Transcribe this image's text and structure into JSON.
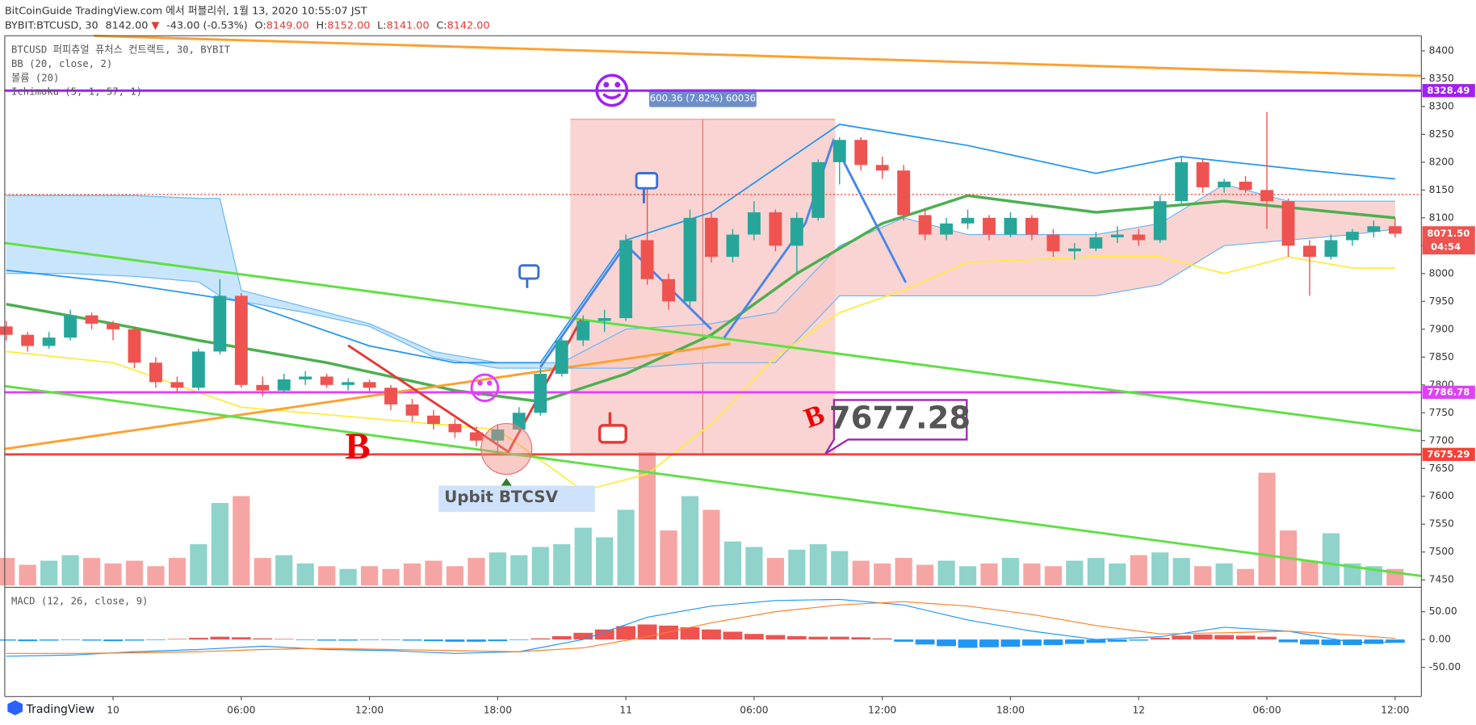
{
  "header": {
    "publish": "BitCoinGuide TradingView.com 에서 퍼블리쉬, 1월 13, 2020 10:55:07 JST",
    "symbol": "BYBIT:BTCUSD, 30",
    "price": {
      "value": 8142,
      "label": "8142.00"
    },
    "arrow": "▼",
    "change": "-43.00 (-0.53%)",
    "ohlc": [
      {
        "name": "O:",
        "value": 8149,
        "label": "8149.00"
      },
      {
        "name": "H:",
        "value": 8152,
        "label": "8152.00"
      },
      {
        "name": "L:",
        "value": 8141,
        "label": "8141.00"
      },
      {
        "name": "C:",
        "value": 8142,
        "label": "8142.00"
      }
    ]
  },
  "annotations": {
    "upbit": "Upbit BTCSV",
    "b1": "B",
    "b2": "B",
    "callout": "7677.28"
  },
  "footer": {
    "logo": "TradingView"
  },
  "chart_data": {
    "type": "candlestick",
    "legend": [
      "BTCUSD 퍼피츄얼 퓨처스 컨트랙트, 30, BYBIT",
      "BB (20, close, 2)",
      "볼륨 (20)",
      "Ichimoku (5, 1, 57, 1)"
    ],
    "up_color": "#26a69a",
    "down_color": "#ef5350",
    "xlim": [
      -5.07,
      61.23
    ],
    "ylim": [
      7440,
      8427
    ],
    "xticks": [
      {
        "value": 0,
        "label": "10"
      },
      {
        "value": 6,
        "label": "06:00"
      },
      {
        "value": 12,
        "label": "12:00"
      },
      {
        "value": 18,
        "label": "18:00"
      },
      {
        "value": 24,
        "label": "11"
      },
      {
        "value": 30,
        "label": "06:00"
      },
      {
        "value": 36,
        "label": "12:00"
      },
      {
        "value": 42,
        "label": "18:00"
      },
      {
        "value": 48,
        "label": "12"
      },
      {
        "value": 54,
        "label": "06:00"
      },
      {
        "value": 60,
        "label": "12:00"
      }
    ],
    "yticks": [
      7450,
      7500,
      7550,
      7600,
      7650,
      7700,
      7750,
      7800,
      7850,
      7900,
      7950,
      8000,
      8050,
      8100,
      8150,
      8200,
      8250,
      8300,
      8350,
      8400
    ],
    "x": [
      -5,
      -4,
      -3,
      -2,
      -1,
      0,
      1,
      2,
      3,
      4,
      5,
      6,
      7,
      8,
      9,
      10,
      11,
      12,
      13,
      14,
      15,
      16,
      17,
      18,
      19,
      20,
      21,
      22,
      23,
      24,
      25,
      26,
      27,
      28,
      29,
      30,
      31,
      32,
      33,
      34,
      35,
      36,
      37,
      38,
      39,
      40,
      41,
      42,
      43,
      44,
      45,
      46,
      47,
      48,
      49,
      50,
      51,
      52,
      53,
      54,
      55,
      56,
      57,
      58,
      59,
      60
    ],
    "candles": [
      [
        7905,
        7915,
        7880,
        7890
      ],
      [
        7890,
        7895,
        7860,
        7870
      ],
      [
        7870,
        7895,
        7865,
        7885
      ],
      [
        7885,
        7935,
        7880,
        7925
      ],
      [
        7925,
        7930,
        7900,
        7910
      ],
      [
        7910,
        7915,
        7880,
        7900
      ],
      [
        7900,
        7905,
        7830,
        7840
      ],
      [
        7840,
        7850,
        7795,
        7805
      ],
      [
        7805,
        7815,
        7785,
        7795
      ],
      [
        7795,
        7865,
        7790,
        7860
      ],
      [
        7860,
        7990,
        7855,
        7960
      ],
      [
        7960,
        7965,
        7795,
        7800
      ],
      [
        7800,
        7815,
        7780,
        7790
      ],
      [
        7790,
        7820,
        7785,
        7810
      ],
      [
        7810,
        7825,
        7800,
        7815
      ],
      [
        7815,
        7820,
        7795,
        7800
      ],
      [
        7800,
        7812,
        7790,
        7805
      ],
      [
        7805,
        7810,
        7785,
        7795
      ],
      [
        7795,
        7800,
        7755,
        7765
      ],
      [
        7765,
        7775,
        7735,
        7745
      ],
      [
        7745,
        7755,
        7720,
        7730
      ],
      [
        7730,
        7740,
        7705,
        7715
      ],
      [
        7715,
        7725,
        7690,
        7700
      ],
      [
        7700,
        7730,
        7677,
        7720
      ],
      [
        7720,
        7760,
        7715,
        7750
      ],
      [
        7750,
        7830,
        7745,
        7820
      ],
      [
        7820,
        7885,
        7815,
        7880
      ],
      [
        7880,
        7925,
        7870,
        7915
      ],
      [
        7915,
        7935,
        7895,
        7920
      ],
      [
        7920,
        8070,
        7915,
        8060
      ],
      [
        8060,
        8160,
        7980,
        7990
      ],
      [
        7990,
        8000,
        7935,
        7950
      ],
      [
        7950,
        8115,
        7940,
        8100
      ],
      [
        8100,
        8110,
        8020,
        8030
      ],
      [
        8030,
        8080,
        8020,
        8070
      ],
      [
        8070,
        8130,
        8060,
        8110
      ],
      [
        8110,
        8115,
        8040,
        8050
      ],
      [
        8050,
        8110,
        8000,
        8100
      ],
      [
        8100,
        8205,
        8095,
        8200
      ],
      [
        8200,
        8245,
        8160,
        8240
      ],
      [
        8240,
        8245,
        8185,
        8195
      ],
      [
        8195,
        8210,
        8170,
        8185
      ],
      [
        8185,
        8195,
        8095,
        8105
      ],
      [
        8105,
        8115,
        8060,
        8070
      ],
      [
        8070,
        8100,
        8060,
        8090
      ],
      [
        8090,
        8115,
        8080,
        8100
      ],
      [
        8100,
        8105,
        8060,
        8070
      ],
      [
        8070,
        8110,
        8065,
        8100
      ],
      [
        8100,
        8105,
        8060,
        8070
      ],
      [
        8070,
        8080,
        8030,
        8040
      ],
      [
        8040,
        8055,
        8025,
        8045
      ],
      [
        8045,
        8075,
        8040,
        8065
      ],
      [
        8065,
        8085,
        8055,
        8070
      ],
      [
        8070,
        8080,
        8050,
        8060
      ],
      [
        8060,
        8140,
        8055,
        8130
      ],
      [
        8130,
        8210,
        8125,
        8200
      ],
      [
        8200,
        8205,
        8145,
        8155
      ],
      [
        8155,
        8170,
        8145,
        8165
      ],
      [
        8165,
        8175,
        8145,
        8150
      ],
      [
        8150,
        8290,
        8080,
        8130
      ],
      [
        8130,
        8135,
        8030,
        8050
      ],
      [
        8050,
        8060,
        7960,
        8030
      ],
      [
        8030,
        8070,
        8025,
        8060
      ],
      [
        8060,
        8080,
        8050,
        8075
      ],
      [
        8075,
        8095,
        8065,
        8085
      ],
      [
        8085,
        8100,
        8065,
        8071.5
      ]
    ],
    "volume": {
      "ylim": [
        0,
        400
      ],
      "up_color": "#8fd3cb",
      "down_color": "#f5a5a3",
      "values": [
        20,
        15,
        18,
        22,
        20,
        16,
        18,
        14,
        20,
        30,
        60,
        65,
        20,
        22,
        16,
        14,
        12,
        14,
        12,
        16,
        18,
        14,
        20,
        24,
        22,
        28,
        30,
        42,
        35,
        55,
        97,
        40,
        65,
        55,
        32,
        28,
        20,
        26,
        30,
        25,
        18,
        16,
        20,
        15,
        18,
        14,
        16,
        20,
        16,
        14,
        18,
        20,
        16,
        22,
        24,
        20,
        14,
        16,
        12,
        82,
        40,
        18,
        38,
        16,
        14,
        12
      ]
    },
    "cloud": [
      {
        "color": "#bbdefb",
        "edge": "#64b5f6",
        "x": [
          -5,
          -2,
          1,
          4,
          5,
          6,
          9,
          12,
          15,
          18,
          21
        ],
        "upper": [
          8140,
          8140,
          8140,
          8135,
          8135,
          7970,
          7940,
          7910,
          7860,
          7840,
          7840
        ],
        "lower": [
          8000,
          8000,
          7995,
          7985,
          7960,
          7950,
          7930,
          7905,
          7850,
          7830,
          7830
        ]
      },
      {
        "color": "#f9c9c7",
        "edge": "#64b5f6",
        "x": [
          21,
          24,
          28,
          31,
          34,
          37,
          40,
          43,
          46,
          49,
          52,
          55,
          58,
          60
        ],
        "upper": [
          7840,
          7900,
          7910,
          7930,
          8050,
          8100,
          8070,
          8070,
          8070,
          8090,
          8160,
          8130,
          8130,
          8130
        ],
        "lower": [
          7830,
          7830,
          7840,
          7840,
          7960,
          7960,
          7960,
          7960,
          7960,
          7980,
          8050,
          8060,
          8070,
          8080
        ]
      }
    ],
    "lines": [
      {
        "color": "#2196f3",
        "x": [
          -5,
          0,
          6,
          12,
          16,
          20,
          24,
          28,
          34,
          40,
          46,
          50,
          56,
          60
        ],
        "values": [
          8006,
          7985,
          7950,
          7870,
          7840,
          7840,
          8060,
          8110,
          8268,
          8230,
          8180,
          8210,
          8185,
          8170
        ]
      },
      {
        "color": "#4caf50",
        "width": 3,
        "x": [
          -5,
          0,
          4,
          10,
          16,
          20,
          24,
          28,
          32,
          36,
          40,
          46,
          52,
          56,
          60
        ],
        "values": [
          7945,
          7910,
          7880,
          7840,
          7790,
          7770,
          7820,
          7890,
          8000,
          8090,
          8140,
          8110,
          8130,
          8115,
          8100
        ]
      },
      {
        "color": "#ffeb3b",
        "x": [
          -5,
          0,
          6,
          12,
          18,
          22,
          25,
          28,
          31,
          34,
          37,
          40,
          46,
          49,
          52,
          55,
          58,
          60
        ],
        "values": [
          7860,
          7840,
          7760,
          7740,
          7720,
          7610,
          7640,
          7730,
          7850,
          7930,
          7970,
          8020,
          8030,
          8030,
          8000,
          8030,
          8010,
          8010
        ]
      }
    ],
    "measure": {
      "x": [
        21.4,
        33.8
      ],
      "y": [
        7677,
        8277
      ],
      "label": "600.36 (7.82%) 60036",
      "color": "#f8c5c3"
    },
    "levels": [
      {
        "value": 8328.49,
        "color": "#a020f0"
      },
      {
        "value": 7786.78,
        "color": "#e040fb"
      },
      {
        "value": 7675.29,
        "color": "#f44336"
      },
      {
        "value": 8142,
        "color": "#f44336",
        "dotted": true
      }
    ],
    "current": {
      "value": 8071.5,
      "label": "8071.50",
      "countdown": "04:54",
      "color": "#ef5350"
    },
    "drawings": [
      {
        "color": "#ff9f2e",
        "x": [
          -0.9,
          61.23
        ],
        "y": [
          8427,
          8355
        ]
      },
      {
        "color": "#ff9f2e",
        "x": [
          -5.07,
          28.9
        ],
        "y": [
          7685,
          7874
        ]
      },
      {
        "color": "#5ee043",
        "x": [
          -5.07,
          61.23
        ],
        "y": [
          8055,
          7717
        ]
      },
      {
        "color": "#5ee043",
        "x": [
          -5.07,
          61.23
        ],
        "y": [
          7798,
          7457
        ]
      },
      {
        "color": "#4a86e8",
        "x": [
          20,
          24,
          28
        ],
        "y": [
          7832,
          8052,
          7900
        ]
      },
      {
        "color": "#4a86e8",
        "x": [
          28.6,
          32.4,
          33.7,
          37.1
        ],
        "y": [
          7885,
          8090,
          8238,
          7984
        ]
      },
      {
        "color": "#e53935",
        "x": [
          11,
          18.5,
          21.9
        ],
        "y": [
          7871,
          7680,
          7917
        ]
      }
    ],
    "macd": {
      "title": "MACD (12, 26, close, 9)",
      "ylim": [
        -99,
        87
      ],
      "yticks": [
        {
          "value": 50,
          "label": "50.00"
        },
        {
          "value": 0,
          "label": "0.00"
        },
        {
          "value": -50,
          "label": "-50.00"
        }
      ],
      "hist": [
        -2,
        -3,
        -2,
        -1,
        -2,
        -3,
        -2,
        -1,
        1,
        3,
        5,
        4,
        2,
        1,
        -1,
        -2,
        -2,
        -1,
        -1,
        -2,
        -3,
        -4,
        -4,
        -3,
        -1,
        2,
        6,
        12,
        18,
        24,
        27,
        25,
        22,
        18,
        14,
        10,
        8,
        6,
        5,
        5,
        4,
        2,
        -4,
        -9,
        -12,
        -15,
        -14,
        -13,
        -11,
        -10,
        -8,
        -6,
        -4,
        -2,
        3,
        7,
        9,
        8,
        7,
        5,
        -5,
        -9,
        -10,
        -10,
        -8,
        -6
      ],
      "pos_color": "#ef5350",
      "neg_color": "#2196f3",
      "lines": [
        {
          "color": "#2196f3",
          "x": [
            -5,
            -2,
            1,
            4,
            7,
            10,
            13,
            16,
            19,
            22,
            25,
            28,
            31,
            34,
            37,
            40,
            43,
            46,
            49,
            52,
            55,
            58,
            60
          ],
          "values": [
            -30,
            -28,
            -22,
            -18,
            -12,
            -18,
            -20,
            -25,
            -22,
            0,
            40,
            60,
            70,
            72,
            62,
            35,
            15,
            0,
            5,
            22,
            15,
            -5,
            -5
          ]
        },
        {
          "color": "#ff7f27",
          "x": [
            -5,
            -2,
            1,
            4,
            7,
            10,
            13,
            16,
            19,
            22,
            25,
            28,
            31,
            34,
            37,
            40,
            43,
            46,
            49,
            52,
            55,
            58,
            60
          ],
          "values": [
            -25,
            -25,
            -24,
            -22,
            -18,
            -16,
            -18,
            -20,
            -22,
            -15,
            5,
            30,
            50,
            62,
            68,
            60,
            45,
            25,
            10,
            12,
            15,
            8,
            2
          ]
        }
      ]
    }
  }
}
